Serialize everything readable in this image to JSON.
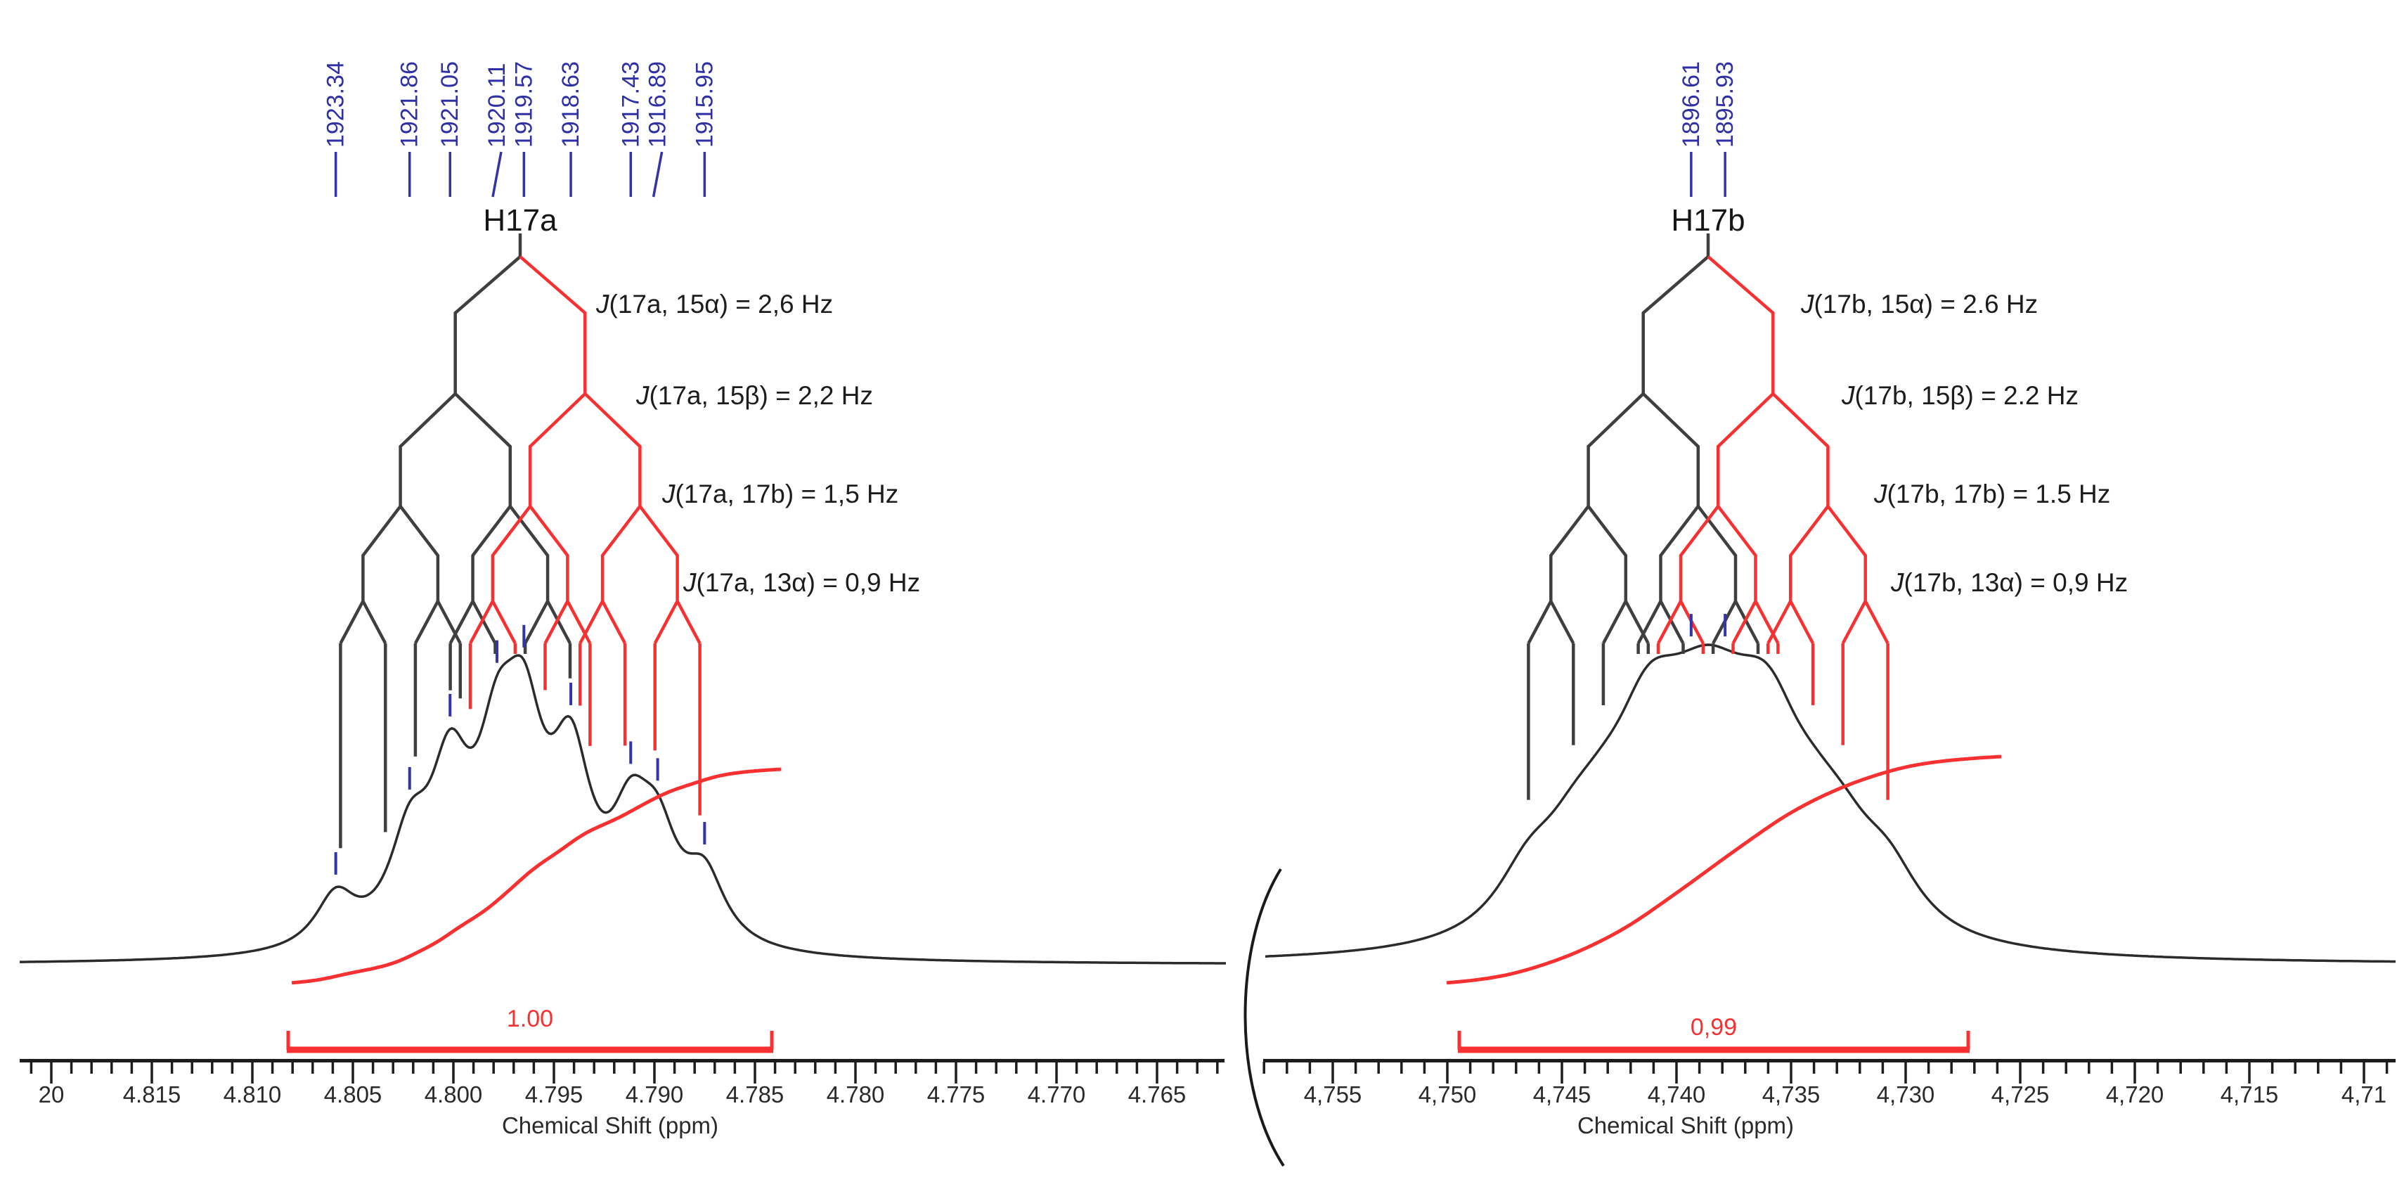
{
  "figure": {
    "kind": "1H NMR multiplet analysis with coupling trees",
    "background": "#ffffff"
  },
  "colors": {
    "spectrum": "#2b2b2b",
    "tree_black": "#3f3f3f",
    "red": "#f73131",
    "blue": "#3333aa",
    "label_blue": "#2f2fa6",
    "text": "#1c1c1c"
  },
  "chart_data": [
    {
      "type": "line",
      "id": "left-multiplet",
      "title": "H17a",
      "xlabel": "Chemical Shift (ppm)",
      "x_ticks": [
        "20",
        "4.815",
        "4.810",
        "4.805",
        "4.800",
        "4.795",
        "4.790",
        "4.785",
        "4.780",
        "4.775",
        "4.770",
        "4.765"
      ],
      "x_tick_start_ppm": 4.82,
      "x_tick_step_ppm": -0.005,
      "peak_labels": [
        "1923.34",
        "1921.86",
        "1921.05",
        "1920.11",
        "1919.57",
        "1918.63",
        "1917.43",
        "1916.89",
        "1915.95"
      ],
      "peaks_hz": [
        1923.34,
        1921.86,
        1921.05,
        1920.11,
        1919.57,
        1918.63,
        1917.43,
        1916.89,
        1915.95
      ],
      "peak_rel_intensities": [
        0.3,
        0.53,
        0.86,
        0.85,
        1.0,
        0.94,
        0.58,
        0.5,
        0.38
      ],
      "center_hz": 1919.645,
      "tilted_peak_ticks": [
        3,
        7
      ],
      "couplings": [
        {
          "j": "J",
          "text": "(17a, 15α) = 2,6 Hz",
          "hz": 2.6
        },
        {
          "j": "J",
          "text": "(17a, 15β) = 2,2 Hz",
          "hz": 2.2
        },
        {
          "j": "J",
          "text": "(17a, 17b) = 1,5 Hz",
          "hz": 1.5
        },
        {
          "j": "J",
          "text": "(17a, 13α) = 0,9 Hz",
          "hz": 0.9
        }
      ],
      "integral": "1.00"
    },
    {
      "type": "line",
      "id": "right-multiplet",
      "title": "H17b",
      "xlabel": "Chemical Shift (ppm)",
      "x_ticks": [
        "4,755",
        "4,750",
        "4,745",
        "4,740",
        "4,735",
        "4,730",
        "4,725",
        "4,720",
        "4,715",
        "4,71"
      ],
      "x_tick_start_ppm": 4.755,
      "x_tick_step_ppm": -0.005,
      "peak_labels": [
        "1896.61",
        "1895.93"
      ],
      "peaks_hz": [
        1896.61,
        1895.93
      ],
      "peak_rel_intensities": [
        1.0,
        1.0
      ],
      "center_hz": 1896.27,
      "tilted_peak_ticks": [],
      "couplings": [
        {
          "j": "J",
          "text": "(17b, 15α) = 2.6 Hz",
          "hz": 2.6
        },
        {
          "j": "J",
          "text": "(17b, 15β) = 2.2 Hz",
          "hz": 2.2
        },
        {
          "j": "J",
          "text": "(17b, 17b) = 1.5 Hz",
          "hz": 1.5
        },
        {
          "j": "J",
          "text": "(17b, 13α) = 0,9 Hz",
          "hz": 0.9
        }
      ],
      "integral": "0,99"
    }
  ]
}
